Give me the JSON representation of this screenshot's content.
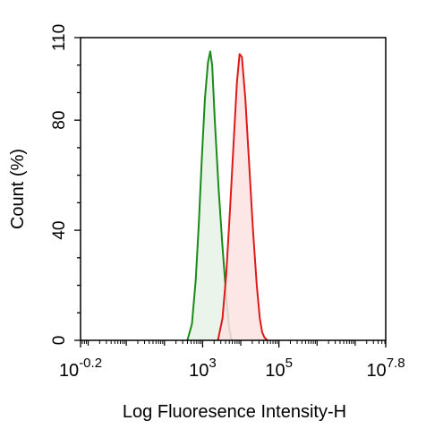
{
  "chart_data": {
    "type": "area",
    "title": "",
    "xlabel": "Log Fluoresence Intensity-H",
    "ylabel": "Count  (%)",
    "x_scale": "log10",
    "xlim": [
      -0.2,
      7.8
    ],
    "ylim": [
      0,
      110
    ],
    "x_ticks": [
      {
        "base": "10",
        "exp": "-0.2",
        "value": -0.2
      },
      {
        "base": "10",
        "exp": "3",
        "value": 3
      },
      {
        "base": "10",
        "exp": "5",
        "value": 5
      },
      {
        "base": "10",
        "exp": "7.8",
        "value": 7.8
      }
    ],
    "y_ticks": [
      {
        "label": "0",
        "value": 0
      },
      {
        "label": "40",
        "value": 40
      },
      {
        "label": "80",
        "value": 80
      },
      {
        "label": "110",
        "value": 110
      }
    ],
    "grid": false,
    "series": [
      {
        "color": "#1a8a1a",
        "fill": "#e6f2e6",
        "points": [
          [
            2.6,
            0
          ],
          [
            2.72,
            6
          ],
          [
            2.82,
            22
          ],
          [
            2.9,
            42
          ],
          [
            2.98,
            66
          ],
          [
            3.06,
            88
          ],
          [
            3.14,
            101
          ],
          [
            3.2,
            105
          ],
          [
            3.25,
            100
          ],
          [
            3.32,
            80
          ],
          [
            3.42,
            55
          ],
          [
            3.52,
            34
          ],
          [
            3.62,
            16
          ],
          [
            3.7,
            4
          ],
          [
            3.76,
            0
          ]
        ]
      },
      {
        "color": "#dd1a1a",
        "fill": "#fbe2e2",
        "points": [
          [
            3.4,
            0
          ],
          [
            3.52,
            8
          ],
          [
            3.62,
            24
          ],
          [
            3.72,
            48
          ],
          [
            3.82,
            74
          ],
          [
            3.9,
            94
          ],
          [
            3.97,
            104
          ],
          [
            4.03,
            103
          ],
          [
            4.12,
            88
          ],
          [
            4.22,
            64
          ],
          [
            4.32,
            40
          ],
          [
            4.42,
            20
          ],
          [
            4.5,
            8
          ],
          [
            4.56,
            3
          ],
          [
            4.62,
            1
          ],
          [
            4.7,
            0
          ]
        ]
      }
    ]
  }
}
